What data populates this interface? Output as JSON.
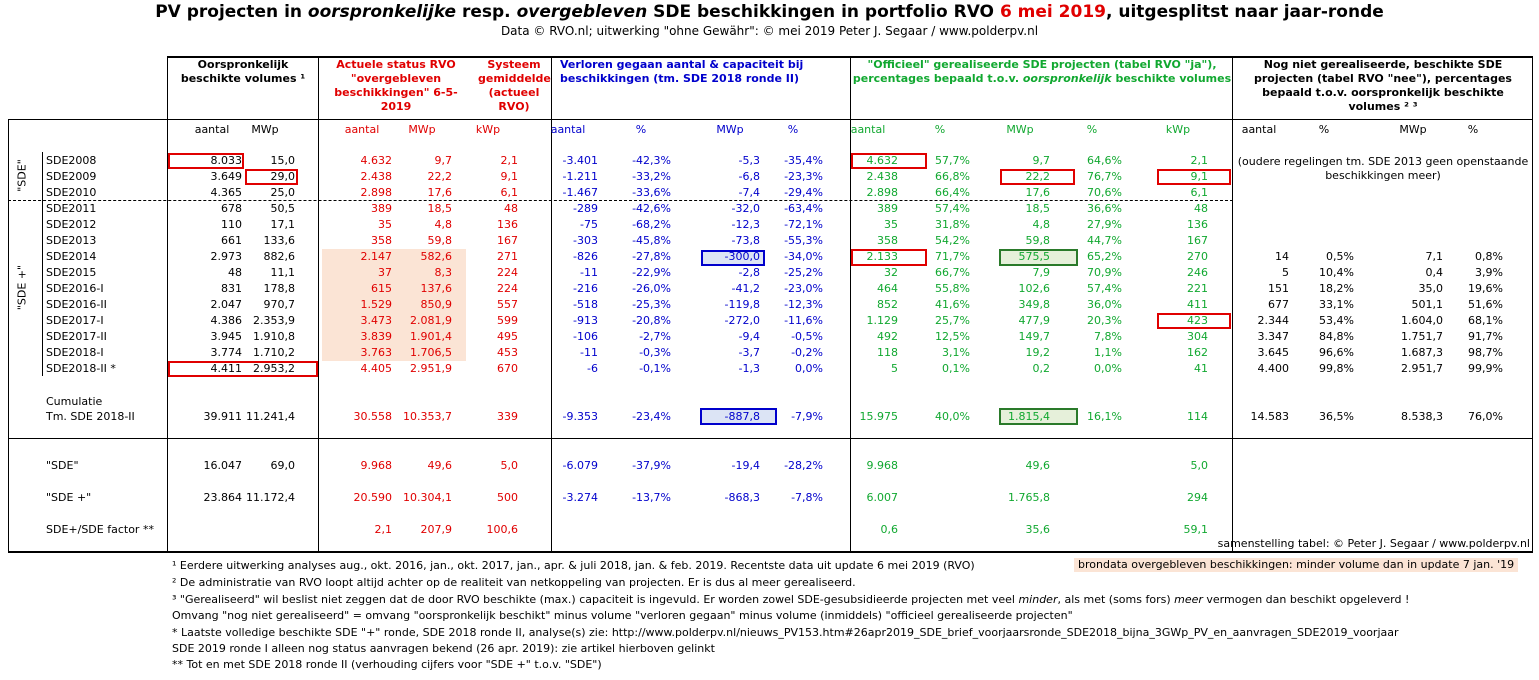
{
  "title": {
    "p1": "PV projecten in ",
    "p2": "oorspronkelijke",
    "p3": " resp. ",
    "p4": "overgebleven",
    "p5": " SDE beschikkingen in portfolio RVO ",
    "p6": "6 mei 2019",
    "p7": ", uitgesplitst naar jaar-ronde"
  },
  "subtitle": "Data © RVO.nl; uitwerking \"ohne Gewähr\": © mei 2019 Peter J. Segaar / www.polderpv.nl",
  "headers": {
    "orig": "Oorspronkelijk beschikte volumes ¹",
    "actueel": "Actuele status RVO \"overgebleven beschikkingen\" 6-5-2019",
    "systeem": "Systeem gemiddelde (actueel RVO)",
    "verloren": "Verloren gegaan aantal & capaciteit bij beschikkingen (tm. SDE 2018 ronde II)",
    "officieel_a": "\"Officieel\" gerealiseerde SDE projecten (tabel RVO \"ja\"),",
    "officieel_b": "percentages bepaald t.o.v. ",
    "officieel_c": "oorspronkelijk",
    "officieel_d": " beschikte volumes",
    "nognniet": "Nog niet gerealiseerde, beschikte SDE projecten (tabel RVO \"nee\"), percentages bepaald t.o.v. oorspronkelijk beschikte volumes ² ³"
  },
  "subheaders": [
    "aantal",
    "MWp",
    "aantal",
    "MWp",
    "kWp",
    "aantal",
    "%",
    "MWp",
    "%",
    "aantal",
    "%",
    "MWp",
    "%",
    "kWp",
    "aantal",
    "%",
    "MWp",
    "%"
  ],
  "group_labels": {
    "sde": "\"SDE\"",
    "sdeplus": "\"SDE +\""
  },
  "rows": [
    {
      "label": "SDE2008",
      "v": [
        "8.033",
        "15,0",
        "4.632",
        "9,7",
        "2,1",
        "-3.401",
        "-42,3%",
        "-5,3",
        "-35,4%",
        "4.632",
        "57,7%",
        "9,7",
        "64,6%",
        "2,1",
        "",
        "",
        "",
        ""
      ]
    },
    {
      "label": "SDE2009",
      "v": [
        "3.649",
        "29,0",
        "2.438",
        "22,2",
        "9,1",
        "-1.211",
        "-33,2%",
        "-6,8",
        "-23,3%",
        "2.438",
        "66,8%",
        "22,2",
        "76,7%",
        "9,1",
        "",
        "",
        "",
        ""
      ]
    },
    {
      "label": "SDE2010",
      "v": [
        "4.365",
        "25,0",
        "2.898",
        "17,6",
        "6,1",
        "-1.467",
        "-33,6%",
        "-7,4",
        "-29,4%",
        "2.898",
        "66,4%",
        "17,6",
        "70,6%",
        "6,1",
        "",
        "",
        "",
        ""
      ]
    },
    {
      "label": "SDE2011",
      "v": [
        "678",
        "50,5",
        "389",
        "18,5",
        "48",
        "-289",
        "-42,6%",
        "-32,0",
        "-63,4%",
        "389",
        "57,4%",
        "18,5",
        "36,6%",
        "48",
        "",
        "",
        "",
        ""
      ]
    },
    {
      "label": "SDE2012",
      "v": [
        "110",
        "17,1",
        "35",
        "4,8",
        "136",
        "-75",
        "-68,2%",
        "-12,3",
        "-72,1%",
        "35",
        "31,8%",
        "4,8",
        "27,9%",
        "136",
        "",
        "",
        "",
        ""
      ]
    },
    {
      "label": "SDE2013",
      "v": [
        "661",
        "133,6",
        "358",
        "59,8",
        "167",
        "-303",
        "-45,8%",
        "-73,8",
        "-55,3%",
        "358",
        "54,2%",
        "59,8",
        "44,7%",
        "167",
        "",
        "",
        "",
        ""
      ]
    },
    {
      "label": "SDE2014",
      "v": [
        "2.973",
        "882,6",
        "2.147",
        "582,6",
        "271",
        "-826",
        "-27,8%",
        "-300,0",
        "-34,0%",
        "2.133",
        "71,7%",
        "575,5",
        "65,2%",
        "270",
        "14",
        "0,5%",
        "7,1",
        "0,8%"
      ]
    },
    {
      "label": "SDE2015",
      "v": [
        "48",
        "11,1",
        "37",
        "8,3",
        "224",
        "-11",
        "-22,9%",
        "-2,8",
        "-25,2%",
        "32",
        "66,7%",
        "7,9",
        "70,9%",
        "246",
        "5",
        "10,4%",
        "0,4",
        "3,9%"
      ]
    },
    {
      "label": "SDE2016-I",
      "v": [
        "831",
        "178,8",
        "615",
        "137,6",
        "224",
        "-216",
        "-26,0%",
        "-41,2",
        "-23,0%",
        "464",
        "55,8%",
        "102,6",
        "57,4%",
        "221",
        "151",
        "18,2%",
        "35,0",
        "19,6%"
      ]
    },
    {
      "label": "SDE2016-II",
      "v": [
        "2.047",
        "970,7",
        "1.529",
        "850,9",
        "557",
        "-518",
        "-25,3%",
        "-119,8",
        "-12,3%",
        "852",
        "41,6%",
        "349,8",
        "36,0%",
        "411",
        "677",
        "33,1%",
        "501,1",
        "51,6%"
      ]
    },
    {
      "label": "SDE2017-I",
      "v": [
        "4.386",
        "2.353,9",
        "3.473",
        "2.081,9",
        "599",
        "-913",
        "-20,8%",
        "-272,0",
        "-11,6%",
        "1.129",
        "25,7%",
        "477,9",
        "20,3%",
        "423",
        "2.344",
        "53,4%",
        "1.604,0",
        "68,1%"
      ]
    },
    {
      "label": "SDE2017-II",
      "v": [
        "3.945",
        "1.910,8",
        "3.839",
        "1.901,4",
        "495",
        "-106",
        "-2,7%",
        "-9,4",
        "-0,5%",
        "492",
        "12,5%",
        "149,7",
        "7,8%",
        "304",
        "3.347",
        "84,8%",
        "1.751,7",
        "91,7%"
      ]
    },
    {
      "label": "SDE2018-I",
      "v": [
        "3.774",
        "1.710,2",
        "3.763",
        "1.706,5",
        "453",
        "-11",
        "-0,3%",
        "-3,7",
        "-0,2%",
        "118",
        "3,1%",
        "19,2",
        "1,1%",
        "162",
        "3.645",
        "96,6%",
        "1.687,3",
        "98,7%"
      ]
    },
    {
      "label": "SDE2018-II *",
      "v": [
        "4.411",
        "2.953,2",
        "4.405",
        "2.951,9",
        "670",
        "-6",
        "-0,1%",
        "-1,3",
        "0,0%",
        "5",
        "0,1%",
        "0,2",
        "0,0%",
        "41",
        "4.400",
        "99,8%",
        "2.951,7",
        "99,9%"
      ]
    }
  ],
  "old_note": "(oudere regelingen tm. SDE 2013 geen openstaande beschikkingen meer)",
  "cumul": {
    "label1": "Cumulatie",
    "label2": "Tm. SDE 2018-II",
    "v": [
      "39.911",
      "11.241,4",
      "30.558",
      "10.353,7",
      "339",
      "-9.353",
      "-23,4%",
      "-887,8",
      "-7,9%",
      "15.975",
      "40,0%",
      "1.815,4",
      "16,1%",
      "114",
      "14.583",
      "36,5%",
      "8.538,3",
      "76,0%"
    ]
  },
  "summary": [
    {
      "label": "\"SDE\"",
      "v": [
        "16.047",
        "69,0",
        "9.968",
        "49,6",
        "5,0",
        "-6.079",
        "-37,9%",
        "-19,4",
        "-28,2%",
        "9.968",
        "",
        "49,6",
        "",
        "5,0",
        "",
        "",
        "",
        ""
      ]
    },
    {
      "label": "\"SDE +\"",
      "v": [
        "23.864",
        "11.172,4",
        "20.590",
        "10.304,1",
        "500",
        "-3.274",
        "-13,7%",
        "-868,3",
        "-7,8%",
        "6.007",
        "",
        "1.765,8",
        "",
        "294",
        "",
        "",
        "",
        ""
      ]
    },
    {
      "label": "SDE+/SDE factor **",
      "v": [
        "",
        "",
        "2,1",
        "207,9",
        "100,6",
        "",
        "",
        "",
        "",
        "0,6",
        "",
        "35,6",
        "",
        "59,1",
        "",
        "",
        "",
        ""
      ]
    }
  ],
  "credit": "samenstelling tabel: © Peter J. Segaar / www.polderpv.nl",
  "legend_note": "brondata overgebleven beschikkingen: minder volume dan in update 7 jan. '19",
  "footnotes": {
    "f1": "¹ Eerdere uitwerking analyses aug., okt. 2016, jan., okt.  2017, jan., apr. & juli 2018, jan. & feb. 2019. Recentste data uit update 6 mei 2019 (RVO)",
    "f2": "² De administratie van RVO loopt altijd achter op de realiteit van netkoppeling van projecten. Er is dus al meer gerealiseerd.",
    "f3a": "³ \"Gerealiseerd\" wil beslist niet zeggen dat de door RVO beschikte (max.) capaciteit is ingevuld. Er worden zowel SDE-gesubsidieerde projecten met veel ",
    "f3b": "minder",
    "f3c": ", als met (soms fors) ",
    "f3d": "meer",
    "f3e": " vermogen dan beschikt opgeleverd !",
    "f4": "Omvang \"nog niet gerealiseerd\" = omvang \"oorspronkelijk beschikt\" minus volume \"verloren gegaan\" minus volume (inmiddels) \"officieel gerealiseerde projecten\"",
    "f5": "* Laatste volledige beschikte SDE \"+\" ronde, SDE 2018 ronde II, analyse(s) zie: http://www.polderpv.nl/nieuws_PV153.htm#26apr2019_SDE_brief_voorjaarsronde_SDE2018_bijna_3GWp_PV_en_aanvragen_SDE2019_voorjaar",
    "f6": "SDE 2019 ronde I alleen nog status aanvragen bekend (26 apr. 2019): zie artikel hierboven gelinkt",
    "f7": "** Tot en met SDE 2018 ronde II (verhouding cijfers voor \"SDE +\" t.o.v. \"SDE\")"
  },
  "colors": {
    "red": "#e00000",
    "blue": "#0000cc",
    "green": "#11a830",
    "peach": "#fbe4d5"
  }
}
